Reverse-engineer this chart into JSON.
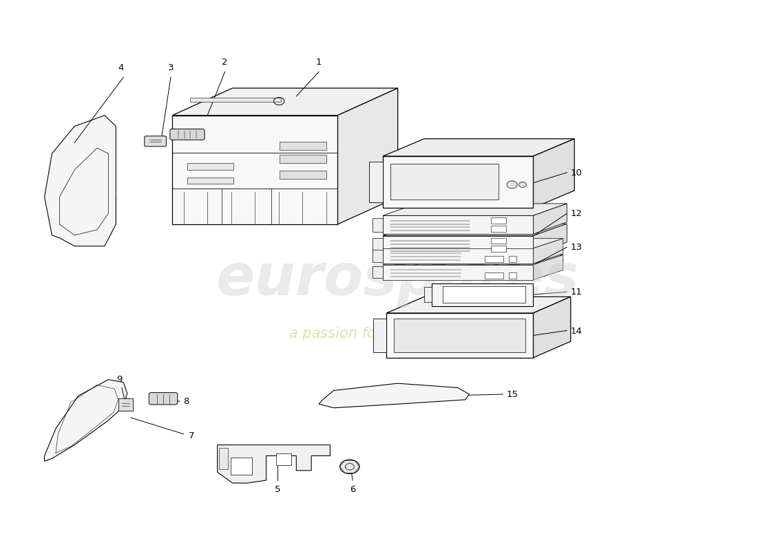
{
  "background_color": "#ffffff",
  "line_color": "#000000",
  "watermark_text1": "eurospares",
  "watermark_text2": "a passion for parts since 1985",
  "watermark_color": "#cccccc",
  "watermark_yellow": "#d4c97a",
  "label_fontsize": 9.5
}
